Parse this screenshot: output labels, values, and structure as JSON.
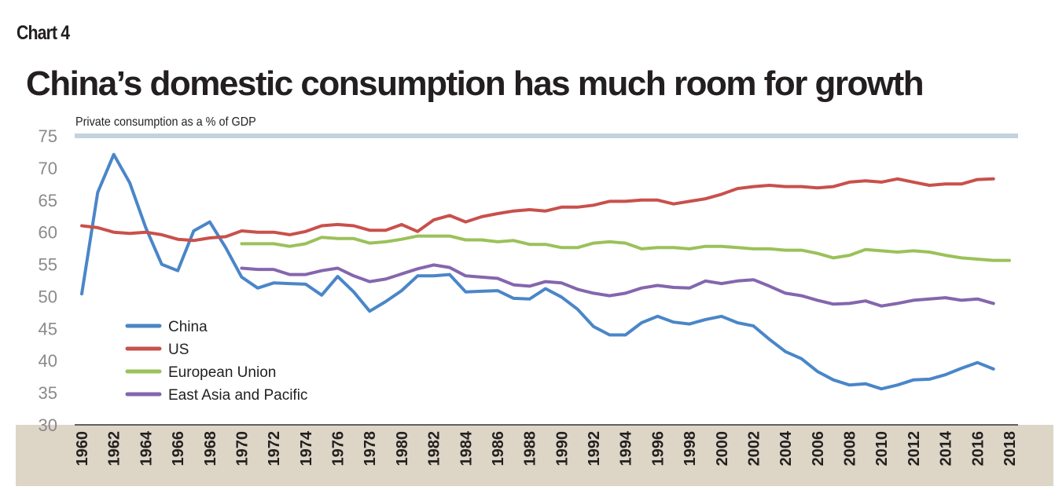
{
  "header": {
    "chart_label": "Chart 4",
    "title": "China’s domestic consumption has much room for growth"
  },
  "chart_data": {
    "type": "line",
    "title": "China’s domestic consumption has much room for growth",
    "subtitle": "Private consumption as a % of GDP",
    "xlabel": "",
    "ylabel": "",
    "xlim": [
      1960,
      2018
    ],
    "ylim": [
      30,
      75
    ],
    "y_ticks": [
      "75",
      "70",
      "65",
      "60",
      "55",
      "50",
      "45",
      "40",
      "35",
      "30"
    ],
    "x_ticks": [
      "1960",
      "1962",
      "1964",
      "1966",
      "1968",
      "1970",
      "1972",
      "1974",
      "1976",
      "1978",
      "1980",
      "1982",
      "1984",
      "1986",
      "1988",
      "1990",
      "1992",
      "1994",
      "1996",
      "1998",
      "2000",
      "2002",
      "2004",
      "2006",
      "2008",
      "2010",
      "2012",
      "2014",
      "2016",
      "2018"
    ],
    "grid": false,
    "legend_position": "bottom-left",
    "series": [
      {
        "name": "China",
        "color": "#4a86c8",
        "start": 1960,
        "values": [
          50.4,
          66.2,
          72.1,
          67.7,
          60.7,
          55,
          54,
          60.2,
          61.6,
          57.6,
          53,
          51.3,
          52.1,
          52,
          51.9,
          50.2,
          53.1,
          50.7,
          47.7,
          49.2,
          50.9,
          53.2,
          53.2,
          53.4,
          50.7,
          50.8,
          50.9,
          49.7,
          49.6,
          51.2,
          49.9,
          48,
          45.3,
          44,
          44,
          45.9,
          46.9,
          46,
          45.7,
          46.4,
          46.9,
          45.9,
          45.4,
          43.3,
          41.4,
          40.3,
          38.3,
          37,
          36.2,
          36.4,
          35.6,
          36.2,
          37,
          37.1,
          37.8,
          38.8,
          39.7,
          38.7
        ]
      },
      {
        "name": "US",
        "color": "#c9504b",
        "start": 1960,
        "values": [
          61,
          60.7,
          60,
          59.8,
          60,
          59.6,
          58.9,
          58.7,
          59.1,
          59.3,
          60.2,
          60,
          60,
          59.6,
          60.1,
          61,
          61.2,
          61,
          60.3,
          60.3,
          61.2,
          60.1,
          61.9,
          62.6,
          61.6,
          62.4,
          62.9,
          63.3,
          63.5,
          63.3,
          63.9,
          63.9,
          64.2,
          64.8,
          64.8,
          65,
          65,
          64.4,
          64.8,
          65.2,
          65.9,
          66.8,
          67.1,
          67.3,
          67.1,
          67.1,
          66.9,
          67.1,
          67.8,
          68,
          67.8,
          68.3,
          67.8,
          67.3,
          67.5,
          67.5,
          68.2,
          68.3
        ]
      },
      {
        "name": "European Union",
        "color": "#9bc15a",
        "start": 1970,
        "values": [
          58.2,
          58.2,
          58.2,
          57.8,
          58.2,
          59.2,
          59,
          59,
          58.3,
          58.5,
          58.9,
          59.4,
          59.4,
          59.4,
          58.8,
          58.8,
          58.5,
          58.7,
          58.1,
          58.1,
          57.6,
          57.6,
          58.3,
          58.5,
          58.3,
          57.4,
          57.6,
          57.6,
          57.4,
          57.8,
          57.8,
          57.6,
          57.4,
          57.4,
          57.2,
          57.2,
          56.7,
          56,
          56.4,
          57.3,
          57.1,
          56.9,
          57.1,
          56.9,
          56.4,
          56,
          55.8,
          55.6,
          55.6
        ]
      },
      {
        "name": "East Asia and Pacific",
        "color": "#8466ad",
        "start": 1970,
        "values": [
          54.4,
          54.2,
          54.2,
          53.4,
          53.4,
          54,
          54.4,
          53.2,
          52.3,
          52.7,
          53.5,
          54.3,
          54.9,
          54.5,
          53.2,
          53,
          52.8,
          51.8,
          51.6,
          52.3,
          52.1,
          51.1,
          50.5,
          50.1,
          50.5,
          51.3,
          51.7,
          51.4,
          51.3,
          52.4,
          52,
          52.4,
          52.6,
          51.6,
          50.5,
          50.1,
          49.4,
          48.8,
          48.9,
          49.3,
          48.5,
          48.9,
          49.4,
          49.6,
          49.8,
          49.4,
          49.6,
          48.9
        ]
      }
    ],
    "colors": {
      "top_rule": "#c3d3dc",
      "axis_band": "#ddd5c6",
      "tick_text": "#8a8a8a"
    }
  }
}
